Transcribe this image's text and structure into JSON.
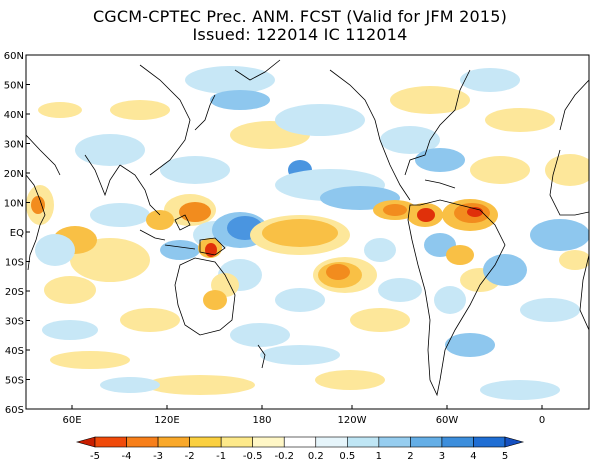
{
  "title": {
    "line1": "CGCM-CPTEC Prec. ANM. FCST  (Valid for JFM 2015)",
    "line2": "Issued:  122014 IC 112014"
  },
  "lat_labels": [
    "60N",
    "50N",
    "40N",
    "30N",
    "20N",
    "10N",
    "EQ",
    "10S",
    "20S",
    "30S",
    "40S",
    "50S",
    "60S"
  ],
  "lon_labels": [
    "60E",
    "120E",
    "180",
    "120W",
    "60W",
    "0"
  ],
  "colorbar": {
    "labels": [
      "-5",
      "-4",
      "-3",
      "-2",
      "-1",
      "-0.5",
      "-0.2",
      "0.2",
      "0.5",
      "1",
      "2",
      "3",
      "4",
      "5"
    ],
    "colors": [
      "#c81e00",
      "#f04a0a",
      "#f77f1a",
      "#f9a82a",
      "#fbd040",
      "#fde98a",
      "#fff7c6",
      "#ffffff",
      "#e6f5fb",
      "#bfe6f5",
      "#96cdef",
      "#64aee6",
      "#3c8edc",
      "#1f6ed4",
      "#1550c0"
    ]
  },
  "anomaly_colors": {
    "dry_strong": "#e0300a",
    "dry": "#f28c1e",
    "dry_weak": "#f9c045",
    "dry_light": "#fde79a",
    "wet_light": "#c7e7f6",
    "wet": "#8ec7ee",
    "wet_strong": "#4a95e0"
  }
}
